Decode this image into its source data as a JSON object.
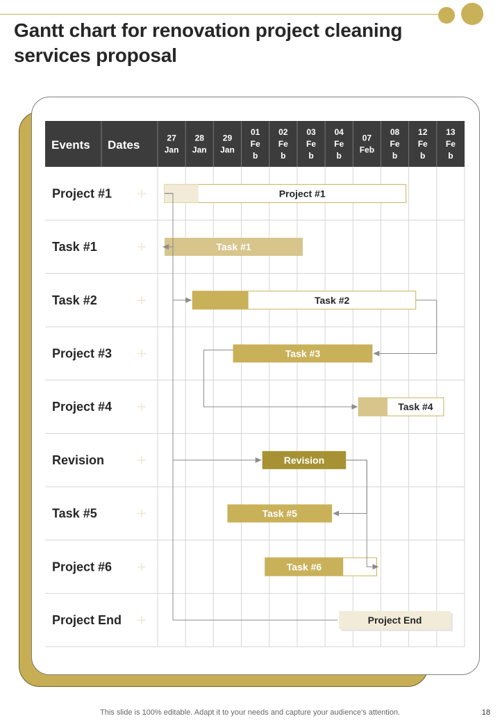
{
  "title": "Gantt chart for renovation project cleaning services proposal",
  "footer_text": "This slide is 100% editable. Adapt it to your needs and capture your audience's attention.",
  "page_number": "18",
  "colors": {
    "accent": "#c9b15a",
    "header_bg": "#3d3c3c",
    "bar_gold": "#c9b15a",
    "bar_light": "#d7c58c",
    "bar_dark": "#a69232",
    "bar_cream": "#f1ebd8"
  },
  "chart_data": {
    "type": "gantt",
    "title": "Gantt chart for renovation project cleaning services proposal",
    "header": {
      "events": "Events",
      "dates": "Dates"
    },
    "date_columns": [
      [
        "27",
        "Jan"
      ],
      [
        "28",
        "Jan"
      ],
      [
        "29",
        "Jan"
      ],
      [
        "01",
        "Fe",
        "b"
      ],
      [
        "02",
        "Fe",
        "b"
      ],
      [
        "03",
        "Fe",
        "b"
      ],
      [
        "04",
        "Fe",
        "b"
      ],
      [
        "07",
        "Feb"
      ],
      [
        "08",
        "Fe",
        "b"
      ],
      [
        "12",
        "Fe",
        "b"
      ],
      [
        "13",
        "Fe",
        "b"
      ]
    ],
    "rows": [
      "Project #1",
      "Task #1",
      "Task #2",
      "Project #3",
      "Project #4",
      "Revision",
      "Task #5",
      "Project #6",
      "Project End"
    ],
    "row_marker": "+",
    "bars": [
      {
        "row": 0,
        "label": "Project #1",
        "start": 0.25,
        "end": 8.9,
        "fill": 0.14,
        "style": "cream-outline"
      },
      {
        "row": 1,
        "label": "Task #1",
        "start": 0.25,
        "end": 5.2,
        "fill": 1.0,
        "style": "light"
      },
      {
        "row": 2,
        "label": "Task #2",
        "start": 1.25,
        "end": 9.25,
        "fill": 0.25,
        "style": "gold-outline"
      },
      {
        "row": 3,
        "label": "Task #3",
        "start": 2.7,
        "end": 7.7,
        "fill": 1.0,
        "style": "gold"
      },
      {
        "row": 4,
        "label": "Task #4",
        "start": 7.2,
        "end": 10.25,
        "fill": 0.34,
        "style": "light-outline"
      },
      {
        "row": 5,
        "label": "Revision",
        "start": 3.75,
        "end": 6.75,
        "fill": 1.0,
        "style": "dark"
      },
      {
        "row": 6,
        "label": "Task #5",
        "start": 2.5,
        "end": 6.25,
        "fill": 1.0,
        "style": "gold"
      },
      {
        "row": 7,
        "label": "Task #6",
        "start": 3.85,
        "end": 7.85,
        "fill": 0.7,
        "style": "gold-outline"
      },
      {
        "row": 8,
        "label": "Project End",
        "start": 6.5,
        "end": 10.5,
        "fill": 1.0,
        "style": "cream"
      }
    ],
    "dependencies": [
      {
        "from_row": 0,
        "to_row": 1,
        "type": "bracket-left"
      },
      {
        "from_row": 0,
        "to_row": 2,
        "type": "bracket-left"
      },
      {
        "from_row": 0,
        "to_row": 5,
        "type": "bracket-left"
      },
      {
        "from_row": 0,
        "to_row": 8,
        "type": "bracket-left"
      },
      {
        "from_row": 2,
        "to_row": 3,
        "type": "bracket-right"
      },
      {
        "from_row": 3,
        "to_row": 4,
        "type": "bracket-left"
      },
      {
        "from_row": 5,
        "to_row": 6,
        "type": "bracket-right"
      },
      {
        "from_row": 5,
        "to_row": 7,
        "type": "bracket-right"
      }
    ]
  }
}
